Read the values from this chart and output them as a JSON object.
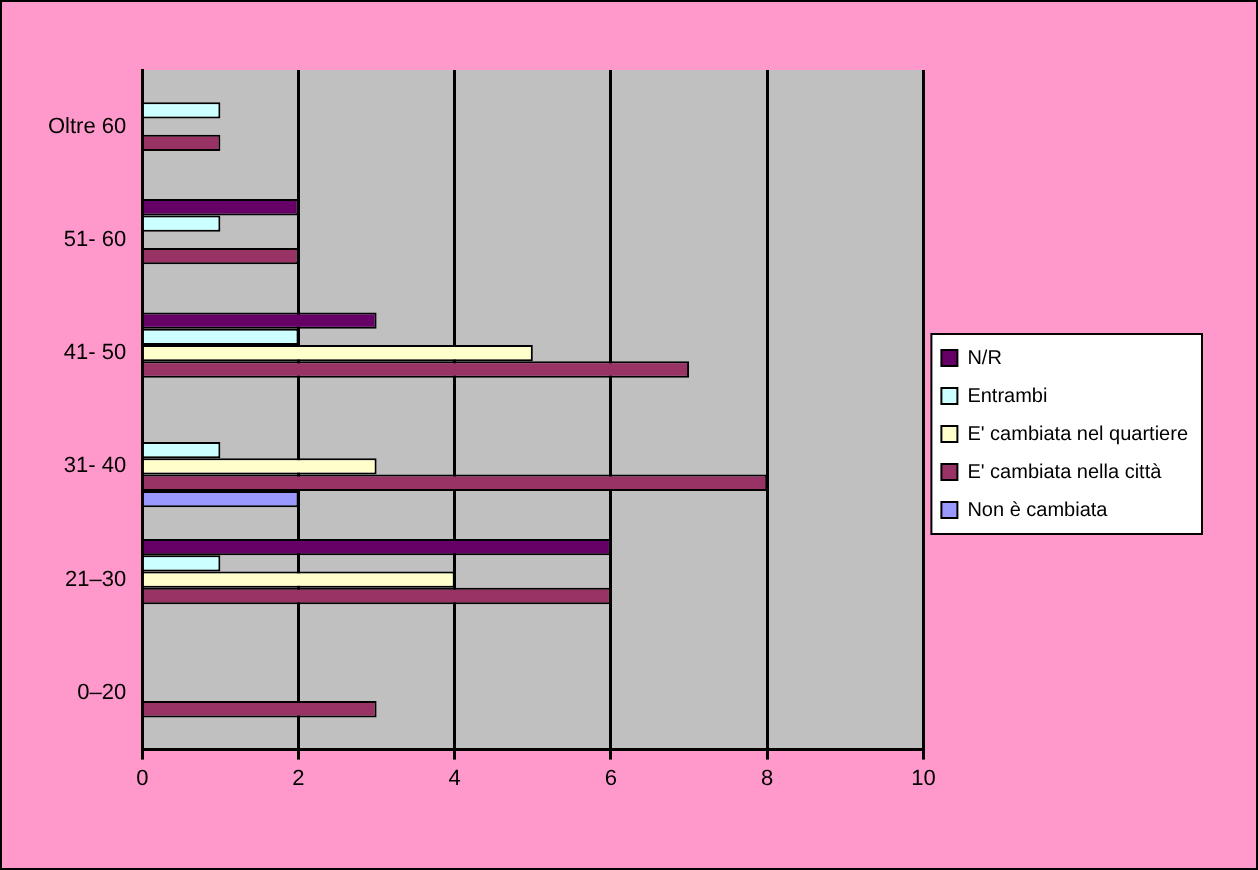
{
  "chart_data": {
    "type": "bar",
    "orientation": "horizontal",
    "categories": [
      "Oltre 60",
      "51- 60",
      "41- 50",
      "31- 40",
      "21–30",
      "0–20"
    ],
    "series": [
      {
        "name": "N/R",
        "color": "#660066",
        "values": [
          null,
          2,
          3,
          null,
          6,
          null
        ]
      },
      {
        "name": "Entrambi",
        "color": "#ccffff",
        "values": [
          1,
          1,
          2,
          1,
          1,
          null
        ]
      },
      {
        "name": "E' cambiata nel quartiere",
        "color": "#ffffcc",
        "values": [
          null,
          null,
          5,
          3,
          4,
          null
        ]
      },
      {
        "name": "E' cambiata nella città",
        "color": "#993366",
        "values": [
          1,
          2,
          7,
          8,
          6,
          3
        ]
      },
      {
        "name": "Non è cambiata",
        "color": "#9999ff",
        "values": [
          null,
          null,
          null,
          2,
          null,
          null
        ]
      }
    ],
    "xlim": [
      0,
      10
    ],
    "xticks": [
      0,
      2,
      4,
      6,
      8,
      10
    ],
    "grid": "x",
    "legend": "right"
  }
}
